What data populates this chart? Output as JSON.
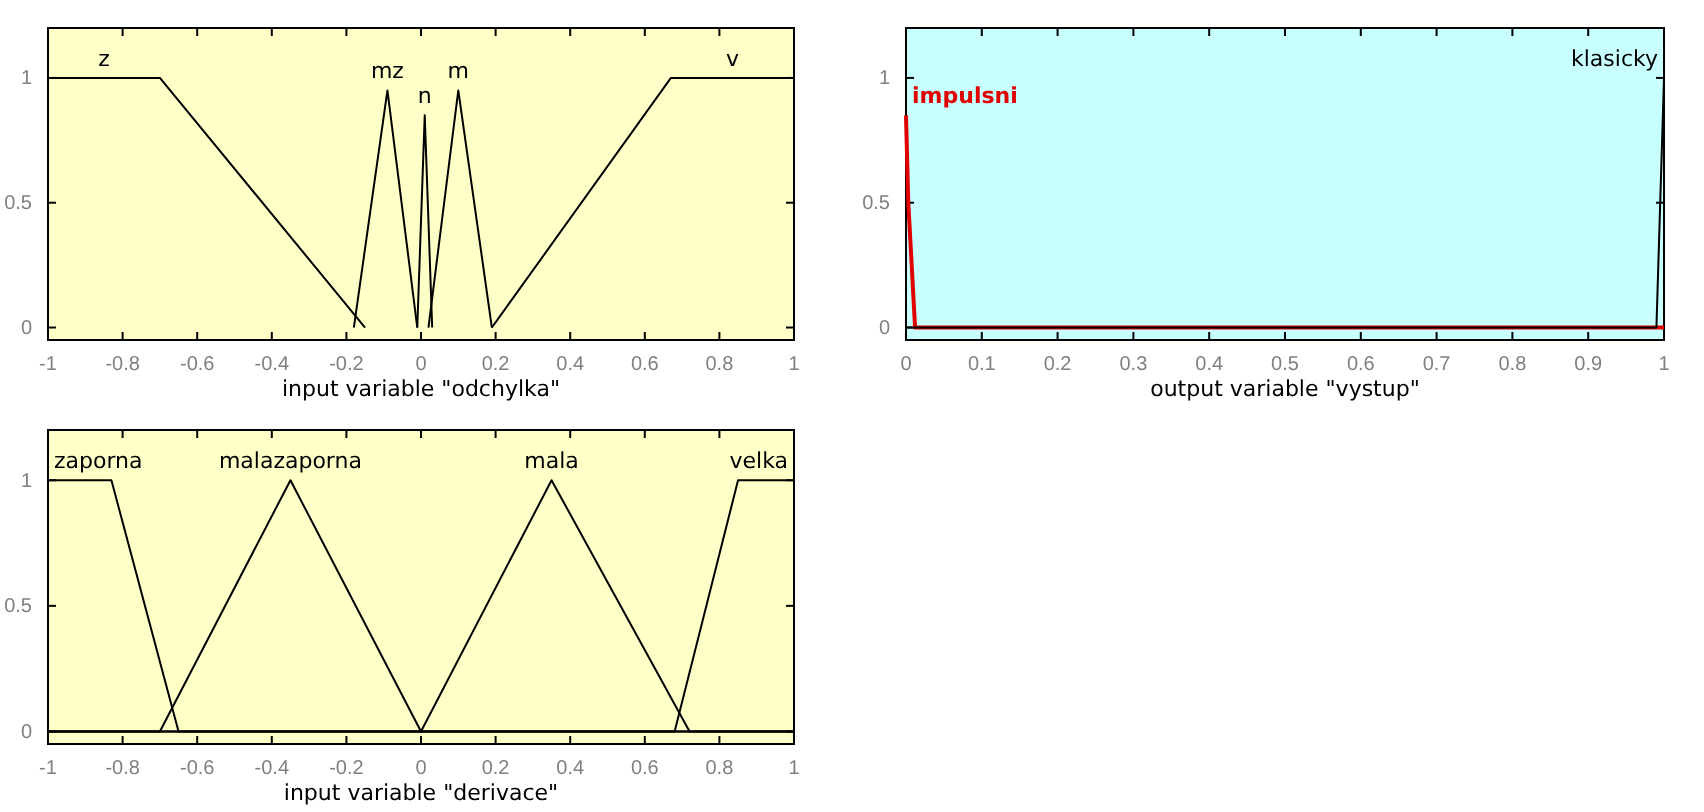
{
  "chart_data": [
    {
      "type": "line",
      "xlabel": "input variable \"odchylka\"",
      "xlim": [
        -1,
        1
      ],
      "xticks": [
        -1,
        -0.8,
        -0.6,
        -0.4,
        -0.2,
        0,
        0.2,
        0.4,
        0.6,
        0.8,
        1
      ],
      "ylim": [
        -0.05,
        1.2
      ],
      "yticks": [
        0,
        0.5,
        1
      ],
      "legend": "top",
      "series": [
        {
          "name": "z",
          "color": "#000000",
          "x": [
            -1,
            -0.7,
            -0.15
          ],
          "values": [
            1,
            1,
            0
          ]
        },
        {
          "name": "mz",
          "color": "#000000",
          "x": [
            -0.18,
            -0.09,
            -0.01
          ],
          "values": [
            0,
            0.95,
            0
          ]
        },
        {
          "name": "n",
          "color": "#000000",
          "x": [
            -0.01,
            0.01,
            0.03
          ],
          "values": [
            0,
            0.85,
            0
          ]
        },
        {
          "name": "m",
          "color": "#000000",
          "x": [
            0.02,
            0.1,
            0.19
          ],
          "values": [
            0,
            0.95,
            0
          ]
        },
        {
          "name": "v",
          "color": "#000000",
          "x": [
            0.19,
            0.67,
            1
          ],
          "values": [
            0,
            1,
            1
          ]
        }
      ]
    },
    {
      "type": "line",
      "xlabel": "output variable \"vystup\"",
      "xlim": [
        0,
        1
      ],
      "xticks": [
        0,
        0.1,
        0.2,
        0.3,
        0.4,
        0.5,
        0.6,
        0.7,
        0.8,
        0.9,
        1
      ],
      "ylim": [
        -0.05,
        1.2
      ],
      "yticks": [
        0,
        0.5,
        1
      ],
      "legend": "top",
      "series": [
        {
          "name": "impulsni",
          "color": "#e00000",
          "x": [
            0,
            0.003,
            0.012,
            1
          ],
          "values": [
            0.85,
            0.5,
            0,
            0
          ]
        },
        {
          "name": "klasicky",
          "color": "#000000",
          "x": [
            0,
            0.99,
            1
          ],
          "values": [
            0,
            0,
            1
          ]
        }
      ]
    },
    {
      "type": "line",
      "xlabel": "input variable \"derivace\"",
      "xlim": [
        -1,
        1
      ],
      "xticks": [
        -1,
        -0.8,
        -0.6,
        -0.4,
        -0.2,
        0,
        0.2,
        0.4,
        0.6,
        0.8,
        1
      ],
      "ylim": [
        -0.05,
        1.2
      ],
      "yticks": [
        0,
        0.5,
        1
      ],
      "legend": "top",
      "series": [
        {
          "name": "zaporna",
          "color": "#000000",
          "x": [
            -1,
            -0.83,
            -0.65,
            1
          ],
          "values": [
            1,
            1,
            0,
            0
          ]
        },
        {
          "name": "malazaporna",
          "color": "#000000",
          "x": [
            -1,
            -0.7,
            -0.35,
            0,
            1
          ],
          "values": [
            0,
            0,
            1,
            0,
            0
          ]
        },
        {
          "name": "mala",
          "color": "#000000",
          "x": [
            -1,
            0,
            0.35,
            0.72,
            1
          ],
          "values": [
            0,
            0,
            1,
            0,
            0
          ]
        },
        {
          "name": "velka",
          "color": "#000000",
          "x": [
            -1,
            0.68,
            0.85,
            1,
            1
          ],
          "values": [
            0,
            0,
            1,
            1,
            1
          ]
        }
      ]
    }
  ]
}
